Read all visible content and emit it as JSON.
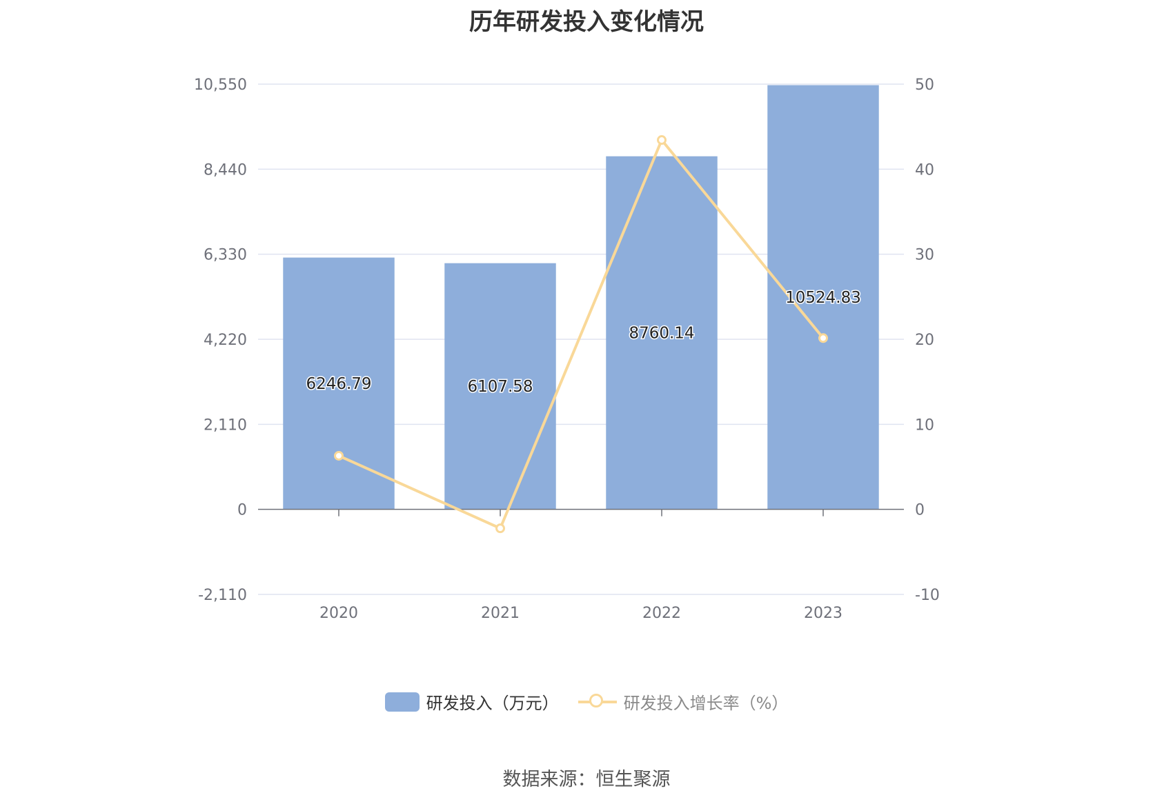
{
  "colors": {
    "bar": "#8eaedb",
    "line": "#f9d898",
    "grid": "#dfe3f0",
    "axis": "#6e7079"
  },
  "chart_data": {
    "type": "bar",
    "title": "历年研发投入变化情况",
    "categories": [
      "2020",
      "2021",
      "2022",
      "2023"
    ],
    "series": [
      {
        "name": "研发投入（万元）",
        "type": "bar",
        "axis": "left",
        "values": [
          6246.79,
          6107.58,
          8760.14,
          10524.83
        ],
        "labels": [
          "6246.79",
          "6107.58",
          "8760.14",
          "10524.83"
        ]
      },
      {
        "name": "研发投入增长率（%）",
        "type": "line",
        "axis": "right",
        "values": [
          6.3,
          -2.23,
          43.43,
          20.14
        ]
      }
    ],
    "y_left": {
      "min": -2110,
      "max": 10550,
      "ticks": [
        -2110,
        0,
        2110,
        4220,
        6330,
        8440,
        10550
      ],
      "tick_labels": [
        "-2,110",
        "0",
        "2,110",
        "4,220",
        "6,330",
        "8,440",
        "10,550"
      ]
    },
    "y_right": {
      "min": -10,
      "max": 50,
      "ticks": [
        -10,
        0,
        10,
        20,
        30,
        40,
        50
      ],
      "tick_labels": [
        "-10",
        "0",
        "10",
        "20",
        "30",
        "40",
        "50"
      ]
    },
    "grid": true,
    "legend": "bottom-center"
  },
  "legend": {
    "bar_label": "研发投入（万元）",
    "line_label": "研发投入增长率（%）"
  },
  "source": "数据来源：恒生聚源"
}
